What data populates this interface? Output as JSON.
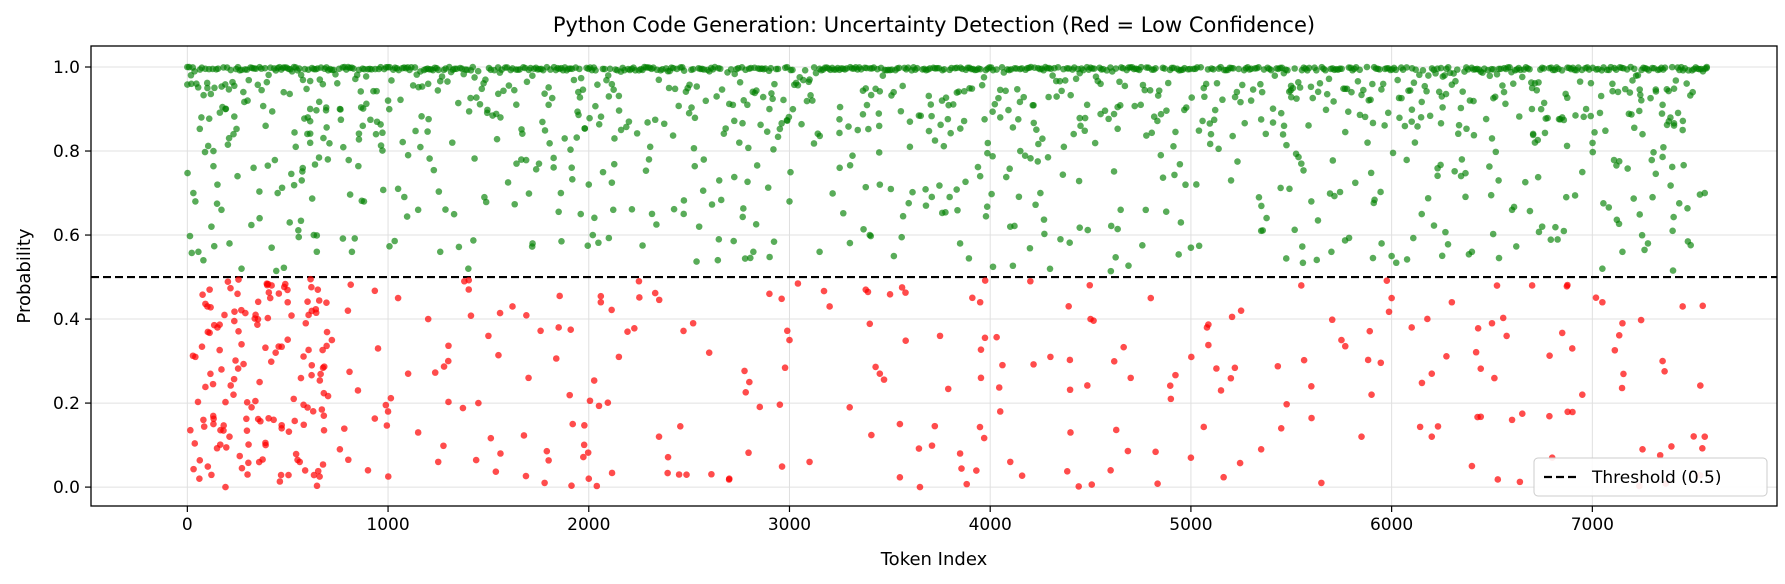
{
  "chart_data": {
    "type": "scatter",
    "title": "Python Code Generation: Uncertainty Detection (Red = Low Confidence)",
    "xlabel": "Token Index",
    "ylabel": "Probability",
    "xlim": [
      -480,
      7920
    ],
    "ylim": [
      -0.045,
      1.05
    ],
    "xticks": [
      0,
      1000,
      2000,
      3000,
      4000,
      5000,
      6000,
      7000
    ],
    "xtick_labels": [
      "0",
      "1000",
      "2000",
      "3000",
      "4000",
      "5000",
      "6000",
      "7000"
    ],
    "yticks": [
      0.0,
      0.2,
      0.4,
      0.6,
      0.8,
      1.0
    ],
    "ytick_labels": [
      "0.0",
      "0.2",
      "0.4",
      "0.6",
      "0.8",
      "1.0"
    ],
    "grid": true,
    "legend_position": "bottom-right",
    "threshold": {
      "y": 0.5,
      "label": "Threshold (0.5)",
      "style": "dashed",
      "color": "#000000"
    },
    "token_count": 7570,
    "colors": {
      "high": "#008000",
      "low": "#ff0000",
      "threshold": "#000000"
    },
    "series": [
      {
        "name": "",
        "color": "#008000",
        "points": [
          [
            0,
            1.0
          ],
          [
            20,
            0.96
          ],
          [
            30,
            0.7
          ],
          [
            40,
            0.68
          ],
          [
            55,
            0.56
          ],
          [
            70,
            0.88
          ],
          [
            80,
            0.54
          ],
          [
            100,
            0.95
          ],
          [
            120,
            0.62
          ],
          [
            130,
            0.8
          ],
          [
            150,
            0.72
          ],
          [
            170,
            0.66
          ],
          [
            190,
            0.9
          ],
          [
            210,
            0.58
          ],
          [
            230,
            0.84
          ],
          [
            250,
            0.74
          ],
          [
            270,
            0.52
          ],
          [
            300,
            0.92
          ],
          [
            330,
            0.76
          ],
          [
            360,
            0.64
          ],
          [
            390,
            0.86
          ],
          [
            420,
            0.57
          ],
          [
            450,
            0.7
          ],
          [
            480,
            0.94
          ],
          [
            510,
            0.63
          ],
          [
            540,
            0.81
          ],
          [
            570,
            0.73
          ],
          [
            600,
            0.88
          ],
          [
            630,
            0.6
          ],
          [
            660,
            0.97
          ],
          [
            700,
            0.78
          ],
          [
            760,
            0.9
          ],
          [
            820,
            0.56
          ],
          [
            880,
            0.68
          ],
          [
            940,
            0.84
          ],
          [
            1000,
            0.92
          ],
          [
            1050,
            0.71
          ],
          [
            1100,
            0.79
          ],
          [
            1150,
            0.66
          ],
          [
            1200,
            0.96
          ],
          [
            1260,
            0.56
          ],
          [
            1320,
            0.82
          ],
          [
            1400,
            0.52
          ],
          [
            1480,
            0.69
          ],
          [
            1560,
            0.88
          ],
          [
            1640,
            0.77
          ],
          [
            1720,
            0.58
          ],
          [
            1800,
            0.91
          ],
          [
            1880,
            0.83
          ],
          [
            1960,
            0.65
          ],
          [
            2020,
            0.6
          ],
          [
            2100,
            0.93
          ],
          [
            2200,
            0.87
          ],
          [
            2300,
            0.78
          ],
          [
            2400,
            0.95
          ],
          [
            2500,
            0.89
          ],
          [
            2550,
            0.62
          ],
          [
            2650,
            0.73
          ],
          [
            2750,
            0.82
          ],
          [
            2820,
            0.56
          ],
          [
            2900,
            0.9
          ],
          [
            3000,
            0.68
          ],
          [
            3100,
            0.97
          ],
          [
            3150,
            0.56
          ],
          [
            3250,
            0.76
          ],
          [
            3340,
            0.85
          ],
          [
            3400,
            0.6
          ],
          [
            3450,
            0.72
          ],
          [
            3520,
            0.55
          ],
          [
            3600,
            0.81
          ],
          [
            3680,
            0.67
          ],
          [
            3760,
            0.92
          ],
          [
            3850,
            0.58
          ],
          [
            3950,
            0.74
          ],
          [
            4050,
            0.88
          ],
          [
            4100,
            0.62
          ],
          [
            4150,
            0.8
          ],
          [
            4250,
            0.7
          ],
          [
            4350,
            0.59
          ],
          [
            4450,
            0.86
          ],
          [
            4550,
            0.96
          ],
          [
            4650,
            0.66
          ],
          [
            4750,
            0.91
          ],
          [
            4850,
            0.79
          ],
          [
            4950,
            0.63
          ],
          [
            5000,
            0.57
          ],
          [
            5100,
            0.84
          ],
          [
            5200,
            0.73
          ],
          [
            5300,
            0.92
          ],
          [
            5350,
            0.61
          ],
          [
            5450,
            0.89
          ],
          [
            5550,
            0.77
          ],
          [
            5600,
            0.68
          ],
          [
            5700,
            0.56
          ],
          [
            5800,
            0.94
          ],
          [
            5880,
            0.82
          ],
          [
            5950,
            0.58
          ],
          [
            6000,
            0.55
          ],
          [
            6100,
            0.87
          ],
          [
            6150,
            0.65
          ],
          [
            6250,
            0.93
          ],
          [
            6350,
            0.78
          ],
          [
            6400,
            0.56
          ],
          [
            6500,
            0.83
          ],
          [
            6600,
            0.66
          ],
          [
            6700,
            0.95
          ],
          [
            6750,
            0.62
          ],
          [
            6850,
            0.88
          ],
          [
            6950,
            0.75
          ],
          [
            7050,
            0.52
          ],
          [
            7100,
            0.96
          ],
          [
            7150,
            0.56
          ],
          [
            7250,
            0.84
          ],
          [
            7300,
            0.69
          ],
          [
            7350,
            0.91
          ],
          [
            7400,
            0.61
          ],
          [
            7450,
            0.85
          ],
          [
            7500,
            0.94
          ],
          [
            7560,
            0.7
          ],
          [
            7570,
            1.0
          ]
        ]
      },
      {
        "name": "",
        "color": "#ff0000",
        "points": [
          [
            40,
            0.31
          ],
          [
            60,
            0.02
          ],
          [
            80,
            0.16
          ],
          [
            100,
            0.43
          ],
          [
            130,
            0.15
          ],
          [
            150,
            0.38
          ],
          [
            170,
            0.28
          ],
          [
            190,
            0.0
          ],
          [
            210,
            0.12
          ],
          [
            230,
            0.22
          ],
          [
            250,
            0.46
          ],
          [
            270,
            0.34
          ],
          [
            300,
            0.03
          ],
          [
            320,
            0.19
          ],
          [
            340,
            0.41
          ],
          [
            360,
            0.25
          ],
          [
            390,
            0.1
          ],
          [
            420,
            0.48
          ],
          [
            440,
            0.32
          ],
          [
            470,
            0.14
          ],
          [
            500,
            0.44
          ],
          [
            530,
            0.21
          ],
          [
            560,
            0.06
          ],
          [
            590,
            0.39
          ],
          [
            620,
            0.29
          ],
          [
            650,
            0.47
          ],
          [
            680,
            0.17
          ],
          [
            720,
            0.35
          ],
          [
            760,
            0.09
          ],
          [
            800,
            0.42
          ],
          [
            850,
            0.23
          ],
          [
            900,
            0.04
          ],
          [
            950,
            0.33
          ],
          [
            1000,
            0.18
          ],
          [
            1050,
            0.45
          ],
          [
            1100,
            0.27
          ],
          [
            1150,
            0.13
          ],
          [
            1200,
            0.4
          ],
          [
            1250,
            0.06
          ],
          [
            1300,
            0.3
          ],
          [
            1380,
            0.49
          ],
          [
            1450,
            0.2
          ],
          [
            1500,
            0.36
          ],
          [
            1560,
            0.08
          ],
          [
            1620,
            0.43
          ],
          [
            1700,
            0.26
          ],
          [
            1780,
            0.01
          ],
          [
            1850,
            0.38
          ],
          [
            1920,
            0.15
          ],
          [
            2000,
            0.02
          ],
          [
            2060,
            0.44
          ],
          [
            2150,
            0.31
          ],
          [
            2250,
            0.49
          ],
          [
            2350,
            0.12
          ],
          [
            2450,
            0.03
          ],
          [
            2520,
            0.39
          ],
          [
            2600,
            0.32
          ],
          [
            2700,
            0.02
          ],
          [
            2800,
            0.25
          ],
          [
            2900,
            0.46
          ],
          [
            3000,
            0.35
          ],
          [
            3100,
            0.06
          ],
          [
            3200,
            0.43
          ],
          [
            3300,
            0.19
          ],
          [
            3380,
            0.47
          ],
          [
            3450,
            0.27
          ],
          [
            3550,
            0.15
          ],
          [
            3650,
            0.0
          ],
          [
            3750,
            0.36
          ],
          [
            3850,
            0.08
          ],
          [
            3950,
            0.44
          ],
          [
            4050,
            0.18
          ],
          [
            4100,
            0.06
          ],
          [
            4200,
            0.49
          ],
          [
            4300,
            0.31
          ],
          [
            4400,
            0.13
          ],
          [
            4500,
            0.4
          ],
          [
            4600,
            0.04
          ],
          [
            4700,
            0.26
          ],
          [
            4800,
            0.45
          ],
          [
            4900,
            0.21
          ],
          [
            5000,
            0.07
          ],
          [
            5080,
            0.38
          ],
          [
            5150,
            0.23
          ],
          [
            5250,
            0.42
          ],
          [
            5350,
            0.09
          ],
          [
            5450,
            0.14
          ],
          [
            5550,
            0.48
          ],
          [
            5600,
            0.24
          ],
          [
            5650,
            0.01
          ],
          [
            5750,
            0.35
          ],
          [
            5850,
            0.12
          ],
          [
            5900,
            0.22
          ],
          [
            6000,
            0.45
          ],
          [
            6100,
            0.38
          ],
          [
            6200,
            0.27
          ],
          [
            6300,
            0.44
          ],
          [
            6400,
            0.05
          ],
          [
            6500,
            0.39
          ],
          [
            6600,
            0.16
          ],
          [
            6700,
            0.48
          ],
          [
            6800,
            0.07
          ],
          [
            6900,
            0.33
          ],
          [
            6950,
            0.22
          ],
          [
            7050,
            0.44
          ],
          [
            7150,
            0.39
          ],
          [
            7250,
            0.09
          ],
          [
            7350,
            0.3
          ],
          [
            7450,
            0.43
          ],
          [
            7560,
            0.12
          ]
        ]
      }
    ]
  }
}
